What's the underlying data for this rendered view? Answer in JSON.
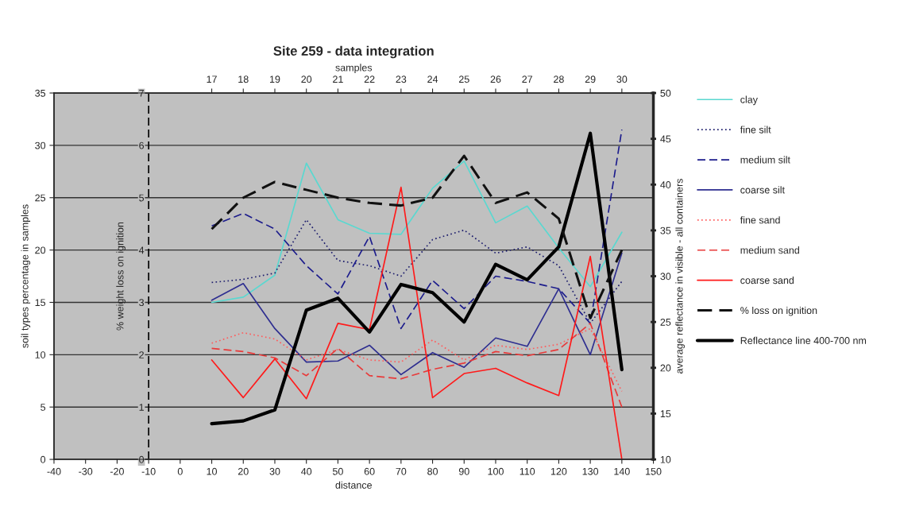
{
  "chart_data": {
    "type": "line",
    "title": "Site 259 - data integration",
    "xlabel": "distance",
    "x2label": "samples",
    "ylabel": "soil types percentage in samples",
    "y2label": "average reflectance in visible - all containers",
    "y3label": "% weight loss on ignition",
    "x": [
      10,
      20,
      30,
      40,
      50,
      60,
      70,
      80,
      90,
      100,
      110,
      120,
      130,
      140
    ],
    "xlim": [
      -40,
      150
    ],
    "xticks": [
      -40,
      -30,
      -20,
      -10,
      0,
      10,
      20,
      30,
      40,
      50,
      60,
      70,
      80,
      90,
      100,
      110,
      120,
      130,
      140,
      150
    ],
    "x2lim": [
      12,
      31
    ],
    "x2ticks": [
      17,
      18,
      19,
      20,
      21,
      22,
      23,
      24,
      25,
      26,
      27,
      28,
      29,
      30
    ],
    "ylim": [
      0,
      35
    ],
    "yticks": [
      0,
      5,
      10,
      15,
      20,
      25,
      30,
      35
    ],
    "y2lim": [
      10,
      50
    ],
    "y2ticks": [
      10,
      15,
      20,
      25,
      30,
      35,
      40,
      45,
      50
    ],
    "y3lim": [
      0,
      7
    ],
    "y3ticks": [
      0,
      1,
      2,
      3,
      4,
      5,
      6,
      7
    ],
    "ref_lines": [
      {
        "axis": "x",
        "value": -10,
        "color": "#000000",
        "line_style": "dashed"
      }
    ],
    "grid": "y",
    "legend": "right",
    "marker": "none",
    "series": [
      {
        "name": "clay",
        "color": "#5ad8d0",
        "line_style": "solid",
        "values": [
          15,
          15.5,
          17.6,
          28.3,
          22.9,
          21.6,
          21.5,
          25.9,
          28.5,
          22.6,
          24.2,
          20.2,
          16.5,
          21.7
        ]
      },
      {
        "name": "fine silt",
        "color": "#1c1c6c",
        "line_style": "dotted",
        "values": [
          16.9,
          17.2,
          17.8,
          22.9,
          19,
          18.5,
          17.5,
          21,
          21.9,
          19.7,
          20.3,
          18.5,
          13,
          17
        ]
      },
      {
        "name": "medium silt",
        "color": "#1c1c8c",
        "line_style": "dashed",
        "values": [
          22.3,
          23.5,
          22,
          18.5,
          15.8,
          21.3,
          12.5,
          17.1,
          14.4,
          17.5,
          17,
          16.3,
          13,
          31.5
        ]
      },
      {
        "name": "coarse silt",
        "color": "#2e2e90",
        "line_style": "solid",
        "values": [
          15.2,
          16.8,
          12.5,
          9.3,
          9.4,
          10.9,
          8.1,
          10.2,
          8.8,
          11.6,
          10.8,
          16.3,
          10,
          19.7
        ]
      },
      {
        "name": "fine sand",
        "color": "#ff5c5c",
        "line_style": "dotted",
        "values": [
          11.1,
          12.1,
          11.5,
          9.5,
          10.5,
          9.5,
          9.3,
          11.4,
          9.5,
          10.9,
          10.5,
          11,
          12.5,
          6.5
        ]
      },
      {
        "name": "medium sand",
        "color": "#e83a3a",
        "line_style": "dashed",
        "values": [
          10.6,
          10.3,
          9.7,
          8,
          10.6,
          8,
          7.7,
          8.6,
          9.2,
          10.3,
          9.9,
          10.5,
          13,
          5
        ]
      },
      {
        "name": "coarse sand",
        "color": "#ff1a1a",
        "line_style": "solid",
        "values": [
          9.5,
          5.9,
          9.6,
          5.8,
          13,
          12.4,
          26,
          5.9,
          8.2,
          8.7,
          7.3,
          6.1,
          19.4,
          0
        ]
      },
      {
        "name": "% loss on ignition",
        "color": "#111111",
        "line_style": "dashed",
        "axis": "y3",
        "values": [
          4.4,
          5,
          5.3,
          5.15,
          5,
          4.9,
          4.85,
          5,
          5.8,
          4.9,
          5.1,
          4.6,
          2.7,
          4
        ]
      },
      {
        "name": "Reflectance line 400-700 nm",
        "color": "#000000",
        "line_style": "solid",
        "axis": "y2",
        "values": [
          13.9,
          14.2,
          15.4,
          26.3,
          27.6,
          23.9,
          29.1,
          28.2,
          25,
          31.3,
          29.6,
          33.2,
          45.6,
          19.8
        ]
      }
    ]
  }
}
